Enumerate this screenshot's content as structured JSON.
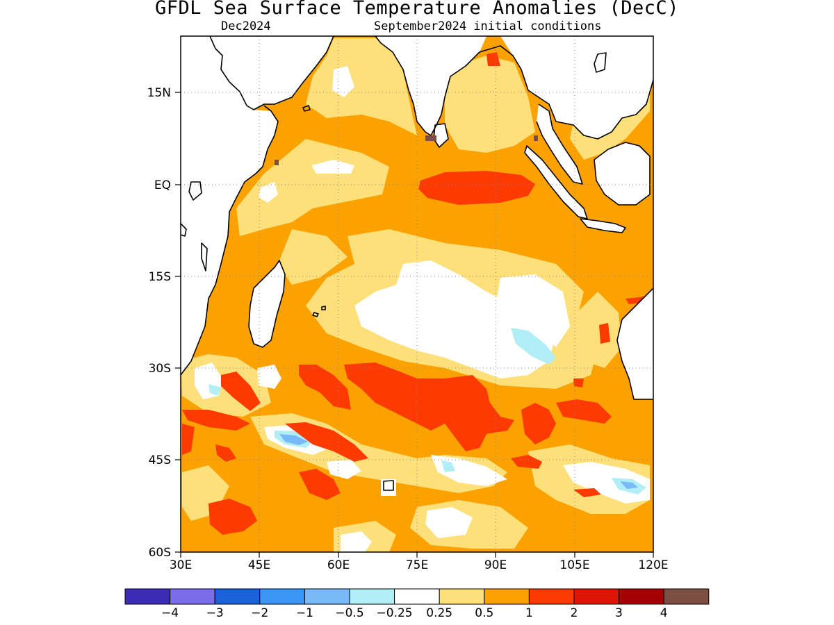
{
  "header": {
    "title": "GFDL Sea Surface Temperature Anomalies (DecC)",
    "target_month": "Dec2024",
    "init_label": "September2024 initial conditions"
  },
  "map": {
    "lat_labels": [
      "15N",
      "EQ",
      "15S",
      "30S",
      "45S",
      "60S"
    ],
    "lon_labels": [
      "30E",
      "45E",
      "60E",
      "75E",
      "90E",
      "105E",
      "120E"
    ],
    "lat_range": [
      "60S",
      "24N"
    ],
    "lon_range": [
      "30E",
      "120E"
    ],
    "grid": "dotted"
  },
  "colorbar": {
    "colors": [
      "#3b2bb5",
      "#7b6ce9",
      "#1a62d9",
      "#3c96f5",
      "#78b9f9",
      "#b2eef6",
      "#ffffff",
      "#fde07a",
      "#fba100",
      "#fd3a02",
      "#e01405",
      "#a50003",
      "#7b4f43"
    ],
    "labels": [
      "−4",
      "−3",
      "−2",
      "−1",
      "−0.5",
      "−0.25",
      "0.25",
      "0.5",
      "1",
      "2",
      "3",
      "4"
    ]
  }
}
